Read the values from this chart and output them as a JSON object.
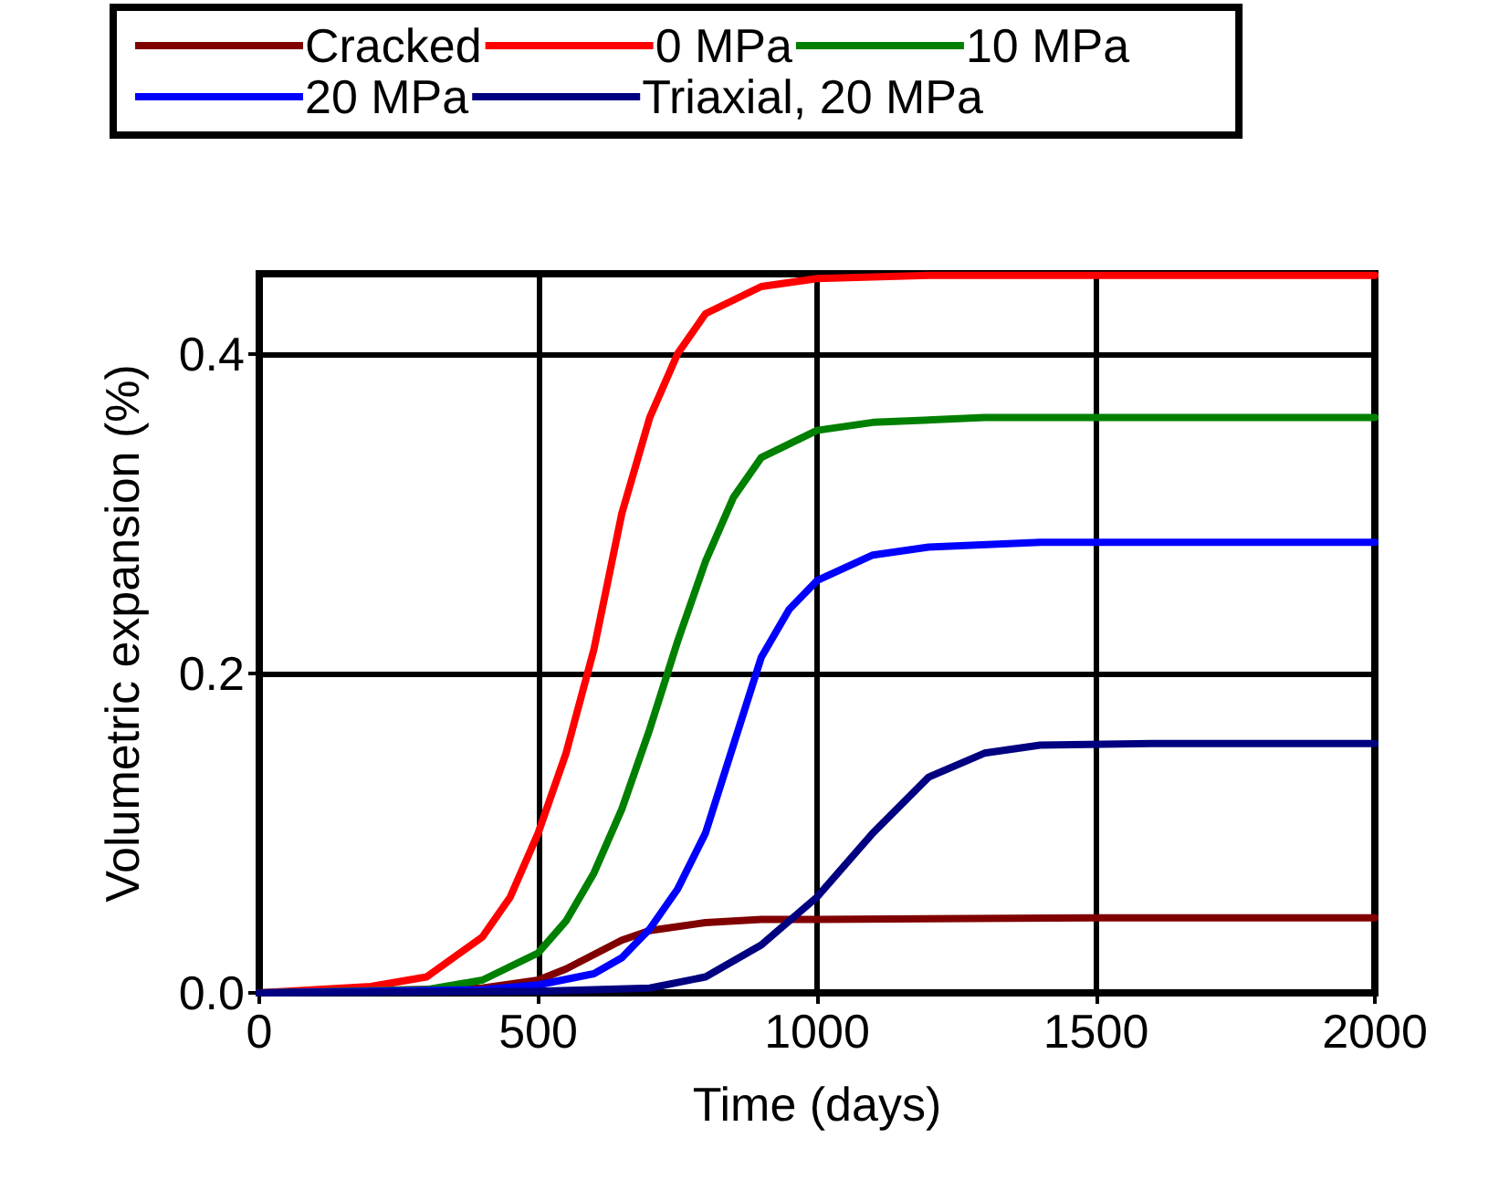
{
  "chart_data": {
    "type": "line",
    "xlabel": "Time (days)",
    "ylabel": "Volumetric expansion (%)",
    "xlim": [
      0,
      2000
    ],
    "xticks": [
      0,
      500,
      1000,
      1500,
      2000
    ],
    "ylim": [
      0,
      0.45
    ],
    "yticks": [
      {
        "value": 0,
        "label": "0.0"
      },
      {
        "value": 0.2,
        "label": "0.2"
      },
      {
        "value": 0.4,
        "label": "0.4"
      }
    ],
    "grid": true,
    "legend": "top",
    "marker": "none",
    "line_style": "solid",
    "series": [
      {
        "name": "Cracked",
        "color": "#800000",
        "x": [
          0,
          400,
          500,
          550,
          600,
          650,
          700,
          800,
          900,
          1000,
          1500,
          2000
        ],
        "values": [
          0,
          0.003,
          0.008,
          0.015,
          0.024,
          0.033,
          0.039,
          0.044,
          0.046,
          0.046,
          0.047,
          0.047
        ]
      },
      {
        "name": "0 MPa",
        "color": "#ff0000",
        "x": [
          0,
          200,
          300,
          400,
          450,
          500,
          550,
          600,
          650,
          700,
          750,
          800,
          900,
          1000,
          1200,
          2000
        ],
        "values": [
          0,
          0.004,
          0.01,
          0.035,
          0.06,
          0.1,
          0.15,
          0.215,
          0.3,
          0.36,
          0.4,
          0.425,
          0.442,
          0.447,
          0.449,
          0.449
        ]
      },
      {
        "name": "10 MPa",
        "color": "#008000",
        "x": [
          0,
          300,
          400,
          500,
          550,
          600,
          650,
          700,
          750,
          800,
          850,
          900,
          1000,
          1100,
          1300,
          2000
        ],
        "values": [
          0,
          0.002,
          0.008,
          0.025,
          0.045,
          0.075,
          0.115,
          0.165,
          0.22,
          0.27,
          0.31,
          0.335,
          0.352,
          0.357,
          0.36,
          0.36
        ]
      },
      {
        "name": "20 MPa",
        "color": "#0000ff",
        "x": [
          0,
          400,
          500,
          600,
          650,
          700,
          750,
          800,
          850,
          900,
          950,
          1000,
          1100,
          1200,
          1400,
          2000
        ],
        "values": [
          0,
          0.002,
          0.005,
          0.012,
          0.022,
          0.04,
          0.065,
          0.1,
          0.155,
          0.21,
          0.24,
          0.258,
          0.274,
          0.279,
          0.282,
          0.282
        ]
      },
      {
        "name": "Triaxial, 20 MPa",
        "color": "#000080",
        "x": [
          0,
          500,
          700,
          800,
          900,
          1000,
          1100,
          1200,
          1300,
          1400,
          1600,
          2000
        ],
        "values": [
          0,
          0.001,
          0.003,
          0.01,
          0.03,
          0.06,
          0.1,
          0.135,
          0.15,
          0.155,
          0.156,
          0.156
        ]
      }
    ]
  }
}
